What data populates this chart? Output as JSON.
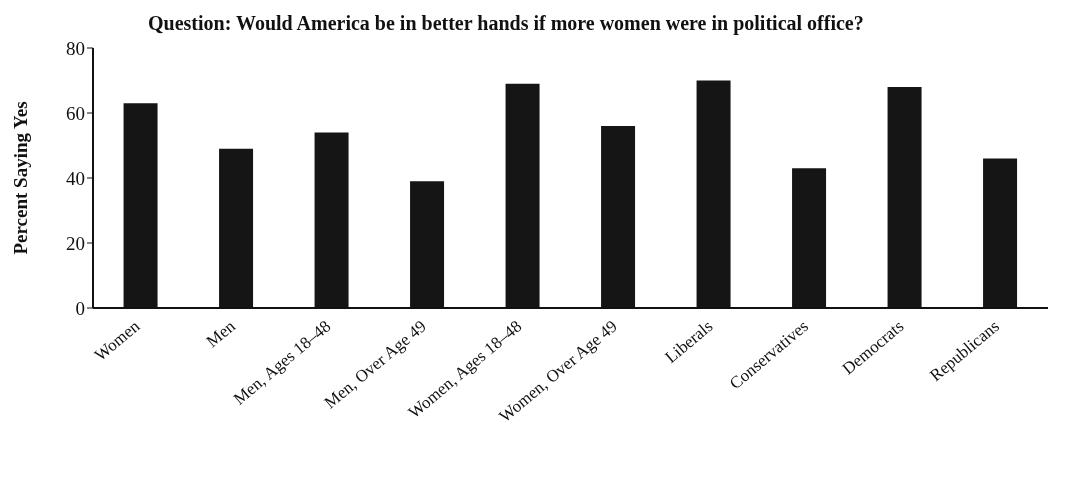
{
  "chart_data": {
    "type": "bar",
    "title": "Question: Would America be in better hands if more women were in political office?",
    "ylabel": "Percent Saying Yes",
    "categories": [
      "Women",
      "Men",
      "Men, Ages 18–48",
      "Men, Over Age 49",
      "Women, Ages 18–48",
      "Women, Over Age 49",
      "Liberals",
      "Conservatives",
      "Democrats",
      "Republicans"
    ],
    "values": [
      63,
      49,
      54,
      39,
      69,
      56,
      70,
      43,
      68,
      46
    ],
    "color": "#151515",
    "ylim": [
      0,
      80
    ],
    "yticks": [
      0,
      20,
      40,
      60,
      80
    ],
    "grid": false
  }
}
